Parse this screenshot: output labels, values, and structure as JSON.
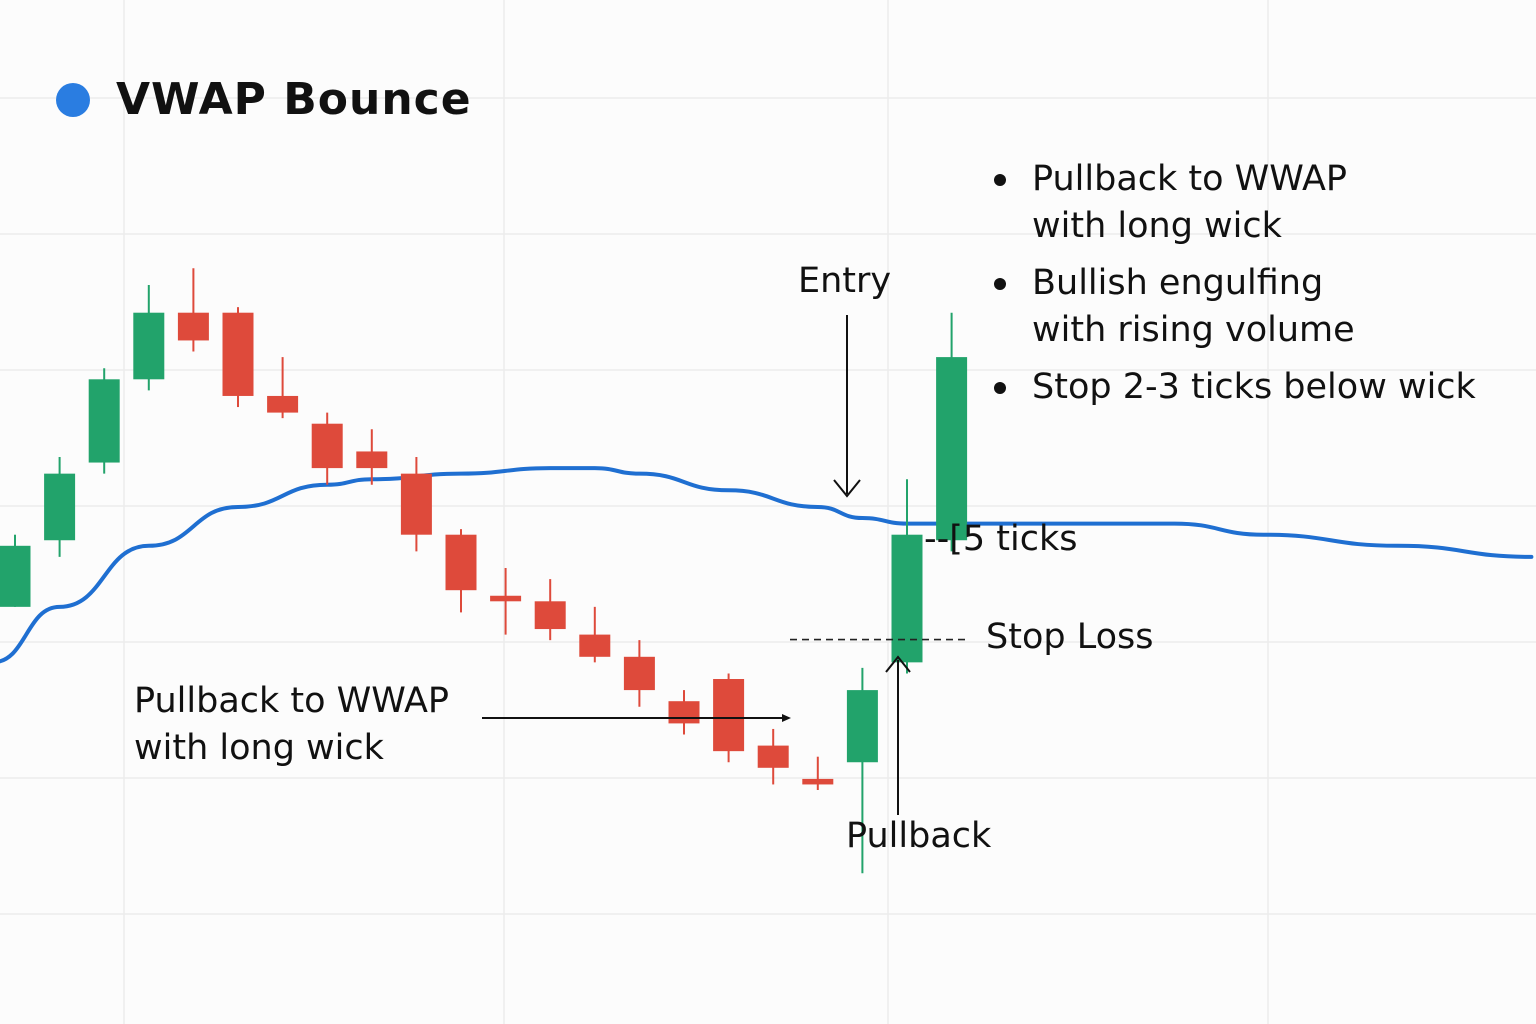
{
  "title": "VWAP Bounce",
  "colors": {
    "bull": "#22a36b",
    "bear": "#de4a3b",
    "vwap": "#1f6fd1",
    "title_dot": "#2a7de1"
  },
  "bullets": [
    {
      "line1": "Pullback to WWAP",
      "line2": "with long wick"
    },
    {
      "line1": "Bullish engulfing",
      "line2": "with rising volume"
    },
    {
      "line1": "Stop 2-3 ticks below wick",
      "line2": ""
    }
  ],
  "annotations": {
    "entry": "Entry",
    "ticks": "--[5 ticks",
    "stop_loss": "Stop Loss",
    "pullback": "Pullback",
    "pullback_note_line1": "Pullback to WWAP",
    "pullback_note_line2": "with long wick"
  },
  "chart_data": {
    "type": "candlestick",
    "title": "VWAP Bounce",
    "xlabel": "",
    "ylabel": "",
    "ylim": [
      0,
      100
    ],
    "grid": true,
    "candles": [
      {
        "open": 33,
        "close": 44,
        "high": 46,
        "low": 33
      },
      {
        "open": 45,
        "close": 57,
        "high": 60,
        "low": 42
      },
      {
        "open": 59,
        "close": 74,
        "high": 76,
        "low": 57
      },
      {
        "open": 74,
        "close": 86,
        "high": 91,
        "low": 72
      },
      {
        "open": 86,
        "close": 81,
        "high": 94,
        "low": 79
      },
      {
        "open": 86,
        "close": 71,
        "high": 87,
        "low": 69
      },
      {
        "open": 71,
        "close": 68,
        "high": 78,
        "low": 67
      },
      {
        "open": 66,
        "close": 58,
        "high": 68,
        "low": 55
      },
      {
        "open": 61,
        "close": 58,
        "high": 65,
        "low": 55
      },
      {
        "open": 57,
        "close": 46,
        "high": 60,
        "low": 43
      },
      {
        "open": 46,
        "close": 36,
        "high": 47,
        "low": 32
      },
      {
        "open": 35,
        "close": 34,
        "high": 40,
        "low": 28
      },
      {
        "open": 34,
        "close": 29,
        "high": 38,
        "low": 27
      },
      {
        "open": 28,
        "close": 24,
        "high": 33,
        "low": 23
      },
      {
        "open": 24,
        "close": 18,
        "high": 27,
        "low": 15
      },
      {
        "open": 16,
        "close": 12,
        "high": 18,
        "low": 10
      },
      {
        "open": 20,
        "close": 7,
        "high": 21,
        "low": 5
      },
      {
        "open": 8,
        "close": 4,
        "high": 11,
        "low": 1
      },
      {
        "open": 2,
        "close": 1,
        "high": 6,
        "low": 0
      },
      {
        "open": 5,
        "close": 18,
        "high": 22,
        "low": -15
      },
      {
        "open": 23,
        "close": 46,
        "high": 56,
        "low": 21
      },
      {
        "open": 45,
        "close": 78,
        "high": 86,
        "low": 43
      }
    ],
    "vwap": [
      [
        -0.5,
        23
      ],
      [
        1,
        33
      ],
      [
        3,
        44
      ],
      [
        5,
        51
      ],
      [
        7,
        55
      ],
      [
        8,
        56
      ],
      [
        10,
        57
      ],
      [
        12,
        58
      ],
      [
        13,
        58
      ],
      [
        14,
        57
      ],
      [
        16,
        54
      ],
      [
        18,
        51
      ],
      [
        19,
        49
      ],
      [
        20,
        48
      ],
      [
        21,
        48
      ],
      [
        23,
        48
      ],
      [
        25,
        48
      ],
      [
        26,
        48
      ],
      [
        28,
        46
      ],
      [
        31,
        44
      ],
      [
        34,
        42
      ]
    ],
    "stop_loss_level": 28
  }
}
